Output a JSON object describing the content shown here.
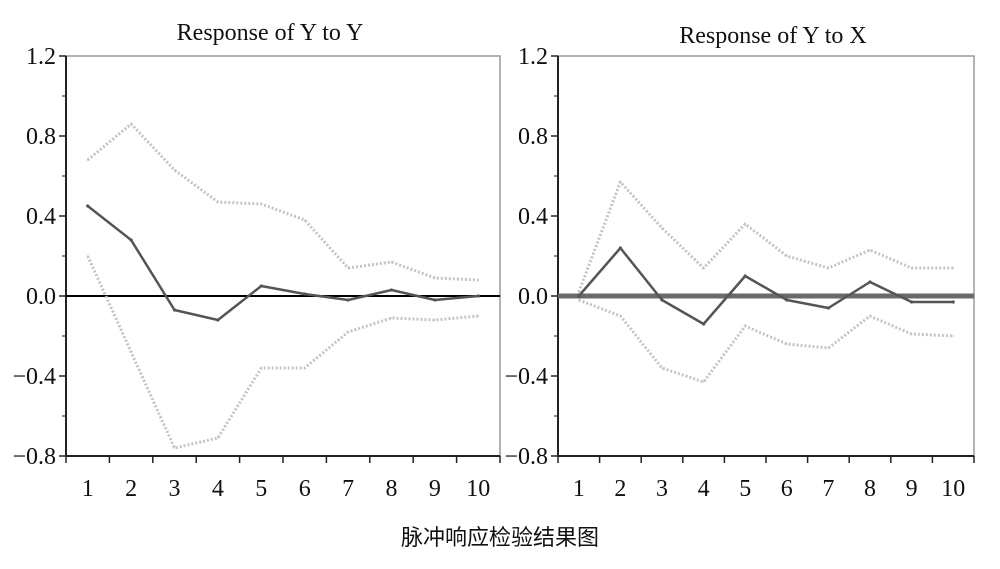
{
  "caption": "脉冲响应检验结果图",
  "chart_data": [
    {
      "type": "line",
      "title": "Response of Y to Y",
      "x": [
        1,
        2,
        3,
        4,
        5,
        6,
        7,
        8,
        9,
        10
      ],
      "xlim": [
        0.5,
        10.5
      ],
      "ylim": [
        -0.8,
        1.2
      ],
      "yticks": [
        "1.2",
        "0.8",
        "0.4",
        "0.0",
        "−0.4",
        "−0.8"
      ],
      "xticks": [
        "1",
        "2",
        "3",
        "4",
        "5",
        "6",
        "7",
        "8",
        "9",
        "10"
      ],
      "zero_line": true,
      "series": [
        {
          "role": "upper",
          "style": "dotted",
          "color": "#c4c4c4",
          "values": [
            0.68,
            0.86,
            0.63,
            0.47,
            0.46,
            0.38,
            0.14,
            0.17,
            0.09,
            0.08
          ]
        },
        {
          "role": "response",
          "style": "solid",
          "color": "#555555",
          "values": [
            0.45,
            0.28,
            -0.07,
            -0.12,
            0.05,
            0.01,
            -0.02,
            0.03,
            -0.02,
            0.0
          ]
        },
        {
          "role": "lower",
          "style": "dotted",
          "color": "#c4c4c4",
          "values": [
            0.2,
            -0.28,
            -0.76,
            -0.71,
            -0.36,
            -0.36,
            -0.18,
            -0.11,
            -0.12,
            -0.1
          ]
        }
      ]
    },
    {
      "type": "line",
      "title": "Response of Y to X",
      "x": [
        1,
        2,
        3,
        4,
        5,
        6,
        7,
        8,
        9,
        10
      ],
      "xlim": [
        0.5,
        10.5
      ],
      "ylim": [
        -0.8,
        1.2
      ],
      "yticks": [
        "1.2",
        "0.8",
        "0.4",
        "0.0",
        "−0.4",
        "−0.8"
      ],
      "xticks": [
        "1",
        "2",
        "3",
        "4",
        "5",
        "6",
        "7",
        "8",
        "9",
        "10"
      ],
      "zero_line": true,
      "series": [
        {
          "role": "upper",
          "style": "dotted",
          "color": "#c4c4c4",
          "values": [
            0.02,
            0.57,
            0.34,
            0.14,
            0.36,
            0.2,
            0.14,
            0.23,
            0.14,
            0.14
          ]
        },
        {
          "role": "response",
          "style": "solid",
          "color": "#555555",
          "values": [
            0.0,
            0.24,
            -0.02,
            -0.14,
            0.1,
            -0.02,
            -0.06,
            0.07,
            -0.03,
            -0.03
          ]
        },
        {
          "role": "lower",
          "style": "dotted",
          "color": "#c4c4c4",
          "values": [
            -0.02,
            -0.1,
            -0.36,
            -0.43,
            -0.15,
            -0.24,
            -0.26,
            -0.1,
            -0.19,
            -0.2
          ]
        }
      ]
    }
  ]
}
